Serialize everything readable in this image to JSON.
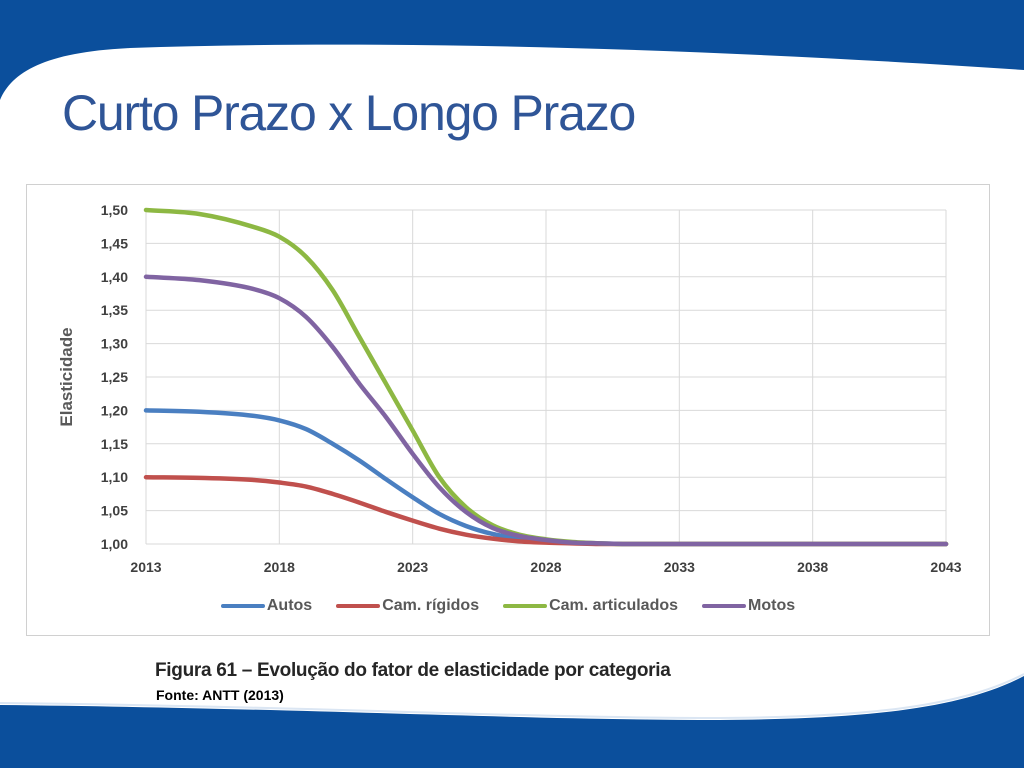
{
  "slide": {
    "title": "Curto Prazo x Longo Prazo",
    "caption": "Figura 61 – Evolução do fator de elasticidade por categoria",
    "source": "Fonte: ANTT (2013)"
  },
  "theme": {
    "banner_color": "#0b4f9c",
    "title_color": "#2f5597"
  },
  "chart_data": {
    "type": "line",
    "title": "",
    "xlabel": "",
    "ylabel": "Elasticidade",
    "x": [
      2013,
      2015,
      2017,
      2018,
      2019,
      2020,
      2021,
      2022,
      2023,
      2024,
      2025,
      2026,
      2027,
      2028,
      2029,
      2030,
      2031,
      2033,
      2038,
      2043
    ],
    "x_ticks": [
      "2013",
      "2018",
      "2023",
      "2028",
      "2033",
      "2038",
      "2043"
    ],
    "y_ticks": [
      "1,00",
      "1,05",
      "1,10",
      "1,15",
      "1,20",
      "1,25",
      "1,30",
      "1,35",
      "1,40",
      "1,45",
      "1,50"
    ],
    "xlim": [
      2013,
      2043
    ],
    "ylim": [
      1.0,
      1.5
    ],
    "grid": true,
    "legend_position": "bottom",
    "series": [
      {
        "name": "Autos",
        "color": "#4a7fc1",
        "values": [
          1.2,
          1.198,
          1.192,
          1.185,
          1.172,
          1.15,
          1.125,
          1.097,
          1.07,
          1.045,
          1.027,
          1.015,
          1.008,
          1.004,
          1.002,
          1.001,
          1.0,
          1.0,
          1.0,
          1.0
        ]
      },
      {
        "name": "Cam. rígidos",
        "color": "#c0504d",
        "values": [
          1.1,
          1.099,
          1.096,
          1.092,
          1.086,
          1.075,
          1.062,
          1.048,
          1.035,
          1.023,
          1.014,
          1.008,
          1.004,
          1.002,
          1.001,
          1.0,
          1.0,
          1.0,
          1.0,
          1.0
        ]
      },
      {
        "name": "Cam. articulados",
        "color": "#8db843",
        "values": [
          1.5,
          1.494,
          1.475,
          1.46,
          1.43,
          1.38,
          1.31,
          1.24,
          1.17,
          1.1,
          1.055,
          1.028,
          1.014,
          1.007,
          1.003,
          1.001,
          1.0,
          1.0,
          1.0,
          1.0
        ]
      },
      {
        "name": "Motos",
        "color": "#8064a2",
        "values": [
          1.4,
          1.395,
          1.382,
          1.368,
          1.34,
          1.295,
          1.24,
          1.19,
          1.135,
          1.085,
          1.048,
          1.024,
          1.012,
          1.006,
          1.002,
          1.001,
          1.0,
          1.0,
          1.0,
          1.0
        ]
      }
    ]
  }
}
